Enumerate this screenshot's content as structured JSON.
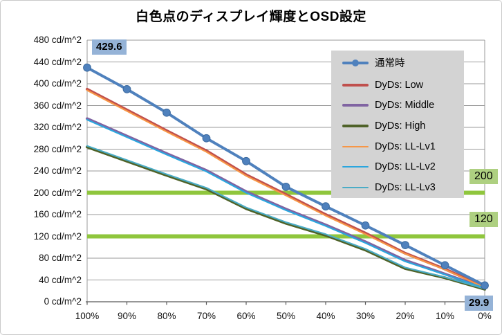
{
  "chart_data": {
    "type": "line",
    "title": "白色点のディスプレイ輝度とOSD設定",
    "xlabel": "",
    "ylabel": "cd/m^2",
    "ylim": [
      0,
      480
    ],
    "grid": "horizontal",
    "legend_position": "upper-right-inside",
    "categories": [
      "100%",
      "90%",
      "80%",
      "70%",
      "60%",
      "50%",
      "40%",
      "30%",
      "20%",
      "10%",
      "0%"
    ],
    "y_ticks": [
      0,
      40,
      80,
      120,
      160,
      200,
      240,
      280,
      320,
      360,
      400,
      440,
      480
    ],
    "y_tick_labels": [
      "0 cd/m^2",
      "40 cd/m^2",
      "80 cd/m^2",
      "120 cd/m^2",
      "160 cd/m^2",
      "200 cd/m^2",
      "240 cd/m^2",
      "280 cd/m^2",
      "320 cd/m^2",
      "360 cd/m^2",
      "400 cd/m^2",
      "440 cd/m^2",
      "480 cd/m^2"
    ],
    "series": [
      {
        "name": "通常時",
        "color": "#4f81bd",
        "width": 4,
        "marker": true,
        "values": [
          429.6,
          390,
          347,
          300,
          258,
          211,
          175,
          140,
          104,
          67,
          29.9
        ]
      },
      {
        "name": "DyDs: Low",
        "color": "#c0504d",
        "width": 4,
        "marker": false,
        "values": [
          390,
          352,
          314,
          277,
          233,
          197,
          160,
          126,
          89,
          60,
          27
        ]
      },
      {
        "name": "DyDs: Middle",
        "color": "#8064a2",
        "width": 4,
        "marker": false,
        "values": [
          336,
          304,
          272,
          241,
          202,
          170,
          141,
          110,
          76,
          51,
          25
        ]
      },
      {
        "name": "DyDs: High",
        "color": "#4f6228",
        "width": 4,
        "marker": false,
        "values": [
          284,
          258,
          232,
          207,
          171,
          144,
          122,
          95,
          61,
          44,
          23
        ]
      },
      {
        "name": "DyDs: LL-Lv1",
        "color": "#f79646",
        "width": 2.2,
        "marker": false,
        "values": [
          388,
          350,
          312,
          275,
          231,
          195,
          158,
          124,
          88,
          59,
          26
        ]
      },
      {
        "name": "DyDs: LL-Lv2",
        "color": "#2ba6de",
        "width": 2.2,
        "marker": false,
        "values": [
          334,
          302,
          270,
          239,
          200,
          168,
          139,
          108,
          74,
          50,
          25
        ]
      },
      {
        "name": "DyDs: LL-Lv3",
        "color": "#4bacc6",
        "width": 2.2,
        "marker": false,
        "values": [
          286,
          260,
          234,
          209,
          173,
          146,
          124,
          97,
          63,
          45,
          24
        ]
      }
    ],
    "reference_lines": [
      {
        "value": 200,
        "label": "200",
        "color": "#8fc63d"
      },
      {
        "value": 120,
        "label": "120",
        "color": "#8fc63d"
      }
    ],
    "point_annotations": [
      {
        "series": "通常時",
        "category": "100%",
        "value": 429.6,
        "label": "429.6"
      },
      {
        "series": "通常時",
        "category": "0%",
        "value": 29.9,
        "label": "29.9"
      }
    ]
  },
  "colors": {
    "accent_blue": "#4f81bd",
    "annotation_blue_bg": "#95b3d7",
    "annotation_green_bg": "#aed081",
    "reference_green": "#8fc63d",
    "legend_bg": "#d3d3d3",
    "gridline": "#9a9a9a",
    "axis": "#595959"
  }
}
